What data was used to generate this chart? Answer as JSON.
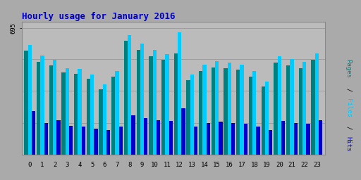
{
  "title": "Hourly usage for January 2016",
  "hours": [
    0,
    1,
    2,
    3,
    4,
    5,
    6,
    7,
    8,
    9,
    10,
    11,
    12,
    13,
    14,
    15,
    16,
    17,
    18,
    19,
    20,
    21,
    22,
    23
  ],
  "pages": [
    570,
    510,
    490,
    450,
    445,
    415,
    360,
    430,
    625,
    575,
    540,
    520,
    555,
    410,
    460,
    480,
    475,
    465,
    430,
    375,
    505,
    490,
    475,
    520
  ],
  "files": [
    600,
    545,
    520,
    475,
    470,
    440,
    385,
    460,
    655,
    610,
    575,
    550,
    670,
    440,
    495,
    515,
    505,
    495,
    460,
    400,
    540,
    525,
    510,
    555
  ],
  "hits": [
    240,
    175,
    190,
    160,
    155,
    145,
    135,
    155,
    215,
    200,
    190,
    185,
    255,
    155,
    175,
    180,
    175,
    170,
    155,
    135,
    185,
    175,
    170,
    190
  ],
  "pages_color": "#007f7f",
  "files_color": "#00ccff",
  "hits_color": "#0000cc",
  "bg_color": "#aaaaaa",
  "plot_bg_color": "#bbbbbb",
  "title_color": "#0000cc",
  "ytick_label": "695",
  "bar_width": 0.3,
  "ylim": [
    0,
    730
  ],
  "figsize": [
    5.12,
    2.56
  ],
  "dpi": 100,
  "ylabel_text": "Pages / Files / Hits",
  "ylabel_pages_color": "#007f7f",
  "ylabel_files_color": "#00ccff",
  "ylabel_hits_color": "#0000cc"
}
